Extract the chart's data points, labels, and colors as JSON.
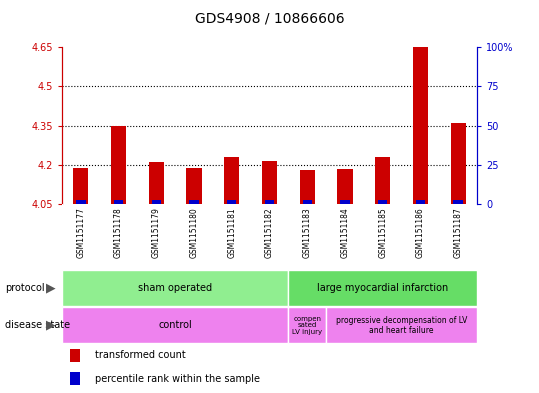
{
  "title": "GDS4908 / 10866606",
  "samples": [
    "GSM1151177",
    "GSM1151178",
    "GSM1151179",
    "GSM1151180",
    "GSM1151181",
    "GSM1151182",
    "GSM1151183",
    "GSM1151184",
    "GSM1151185",
    "GSM1151186",
    "GSM1151187"
  ],
  "red_values": [
    4.19,
    4.35,
    4.21,
    4.19,
    4.23,
    4.215,
    4.18,
    4.185,
    4.23,
    4.65,
    4.36
  ],
  "blue_values": [
    4.065,
    4.065,
    4.065,
    4.068,
    4.068,
    4.065,
    4.068,
    4.068,
    4.065,
    4.068,
    4.068
  ],
  "base": 4.05,
  "ylim_left": [
    4.05,
    4.65
  ],
  "ylim_right": [
    0,
    100
  ],
  "yticks_left": [
    4.05,
    4.2,
    4.35,
    4.5,
    4.65
  ],
  "ytick_labels_left": [
    "4.05",
    "4.2",
    "4.35",
    "4.5",
    "4.65"
  ],
  "yticks_right": [
    0,
    25,
    50,
    75,
    100
  ],
  "ytick_labels_right": [
    "0",
    "25",
    "50",
    "75",
    "100%"
  ],
  "dotted_lines": [
    4.2,
    4.35,
    4.5
  ],
  "bar_width": 0.4,
  "blue_bar_width": 0.25,
  "red_color": "#cc0000",
  "blue_color": "#0000cc",
  "left_tick_color": "#cc0000",
  "right_tick_color": "#0000cc",
  "bg_color": "#ffffff",
  "plot_bg_color": "#ffffff",
  "label_row_bg": "#c8c8c8",
  "sham_color": "#90ee90",
  "large_color": "#66dd66",
  "disease_pink": "#ee82ee",
  "title_fontsize": 10,
  "tick_fontsize": 7,
  "sample_fontsize": 5.5,
  "annot_fontsize": 7,
  "legend_fontsize": 7
}
